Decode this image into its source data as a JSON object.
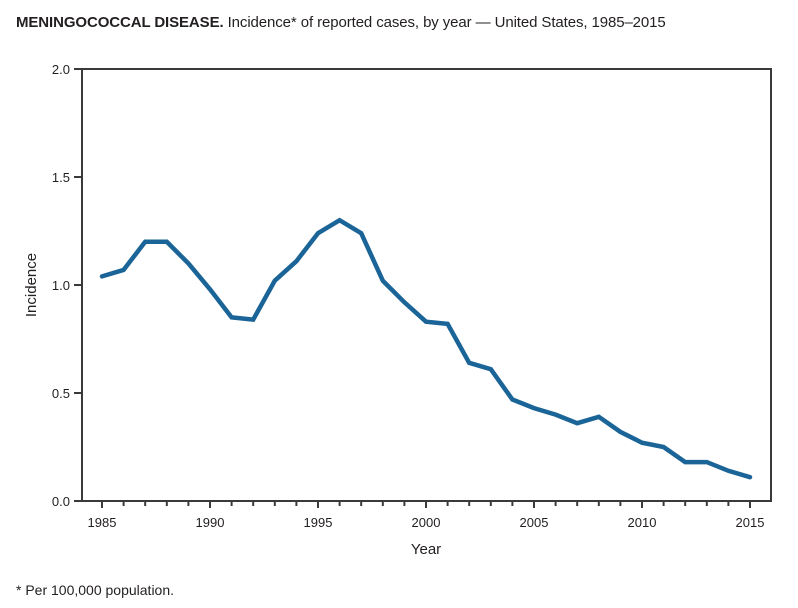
{
  "title_main": "MENINGOCOCCAL DISEASE.",
  "title_rest": " Incidence* of reported cases, by year — United States, 1985–2015",
  "footnote": "* Per 100,000 population.",
  "chart_data": {
    "type": "line",
    "title": "MENINGOCOCCAL DISEASE. Incidence* of reported cases, by year — United States, 1985–2015",
    "xlabel": "Year",
    "ylabel": "Incidence",
    "xlim": [
      1984,
      2016
    ],
    "ylim": [
      0.0,
      2.0
    ],
    "xticks": [
      1985,
      1990,
      1995,
      2000,
      2005,
      2010,
      2015
    ],
    "xtick_labels": [
      "1985",
      "1990",
      "1995",
      "2000",
      "2005",
      "2010",
      "2015"
    ],
    "yticks": [
      0.0,
      0.5,
      1.0,
      1.5,
      2.0
    ],
    "ytick_labels": [
      "0.0",
      "0.5",
      "1.0",
      "1.5",
      "2.0"
    ],
    "grid": false,
    "legend": "none",
    "line_color": "#1b6498",
    "series": [
      {
        "name": "Incidence",
        "x": [
          1985,
          1986,
          1987,
          1988,
          1989,
          1990,
          1991,
          1992,
          1993,
          1994,
          1995,
          1996,
          1997,
          1998,
          1999,
          2000,
          2001,
          2002,
          2003,
          2004,
          2005,
          2006,
          2007,
          2008,
          2009,
          2010,
          2011,
          2012,
          2013,
          2014,
          2015
        ],
        "values": [
          1.04,
          1.07,
          1.2,
          1.2,
          1.1,
          0.98,
          0.85,
          0.84,
          1.02,
          1.11,
          1.24,
          1.3,
          1.24,
          1.02,
          0.92,
          0.83,
          0.82,
          0.64,
          0.61,
          0.47,
          0.43,
          0.4,
          0.36,
          0.39,
          0.32,
          0.27,
          0.25,
          0.18,
          0.18,
          0.14,
          0.11
        ]
      }
    ],
    "footnote": "* Per 100,000 population."
  }
}
